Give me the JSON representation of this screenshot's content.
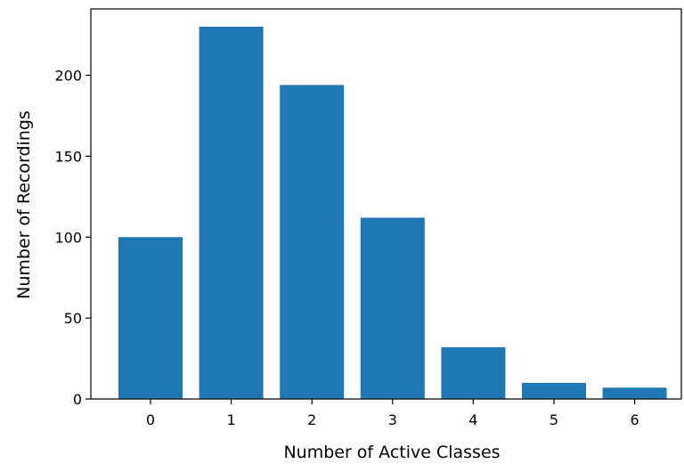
{
  "chart_data": {
    "type": "bar",
    "title": "",
    "xlabel": "Number of Active Classes",
    "ylabel": "Number of Recordings",
    "categories": [
      "0",
      "1",
      "2",
      "3",
      "4",
      "5",
      "6"
    ],
    "values": [
      100,
      230,
      194,
      112,
      32,
      10,
      7
    ],
    "ylim": [
      0,
      241
    ],
    "yticks": [
      "0",
      "50",
      "100",
      "150",
      "200"
    ],
    "bar_color": "#1f77b4",
    "grid": false
  }
}
